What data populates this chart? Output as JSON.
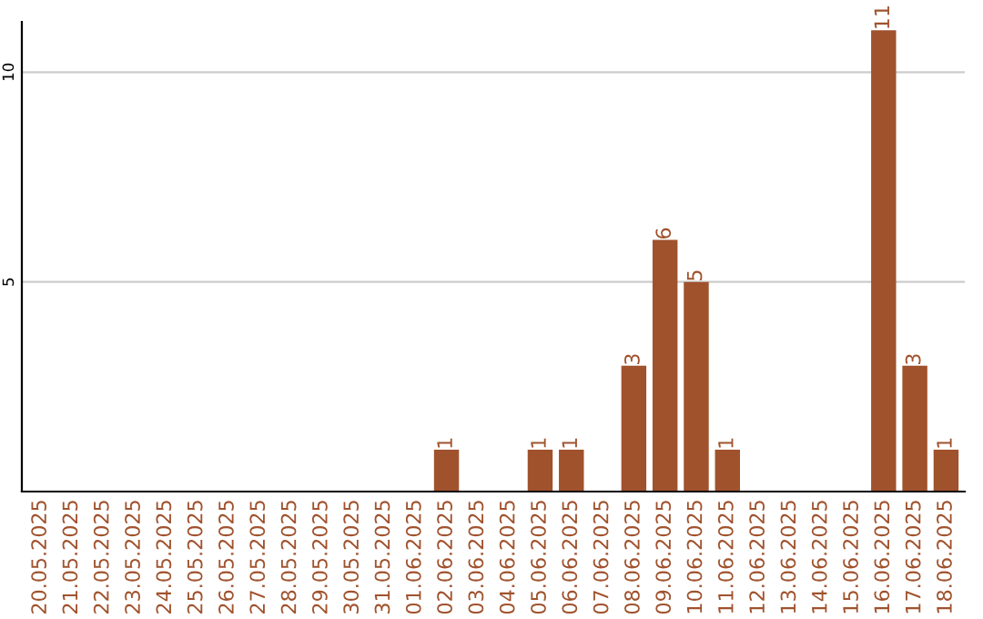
{
  "chart_data": {
    "type": "bar",
    "categories": [
      "20.05.2025",
      "21.05.2025",
      "22.05.2025",
      "23.05.2025",
      "24.05.2025",
      "25.05.2025",
      "26.05.2025",
      "27.05.2025",
      "28.05.2025",
      "29.05.2025",
      "30.05.2025",
      "31.05.2025",
      "01.06.2025",
      "02.06.2025",
      "03.06.2025",
      "04.06.2025",
      "05.06.2025",
      "06.06.2025",
      "07.06.2025",
      "08.06.2025",
      "09.06.2025",
      "10.06.2025",
      "11.06.2025",
      "12.06.2025",
      "13.06.2025",
      "14.06.2025",
      "15.06.2025",
      "16.06.2025",
      "17.06.2025",
      "18.06.2025"
    ],
    "values": [
      0,
      0,
      0,
      0,
      0,
      0,
      0,
      0,
      0,
      0,
      0,
      0,
      0,
      1,
      0,
      0,
      1,
      1,
      0,
      3,
      6,
      5,
      1,
      0,
      0,
      0,
      0,
      11,
      3,
      1
    ],
    "value_labels": [
      null,
      null,
      null,
      null,
      null,
      null,
      null,
      null,
      null,
      null,
      null,
      null,
      null,
      "1",
      null,
      null,
      "1",
      "1",
      null,
      "3",
      "6",
      "5",
      "1",
      null,
      null,
      null,
      null,
      "11",
      "3",
      "1"
    ],
    "color": "#a0522d",
    "ylim": [
      0,
      11.2
    ],
    "yticks": [
      5,
      10
    ],
    "grid": "y"
  }
}
